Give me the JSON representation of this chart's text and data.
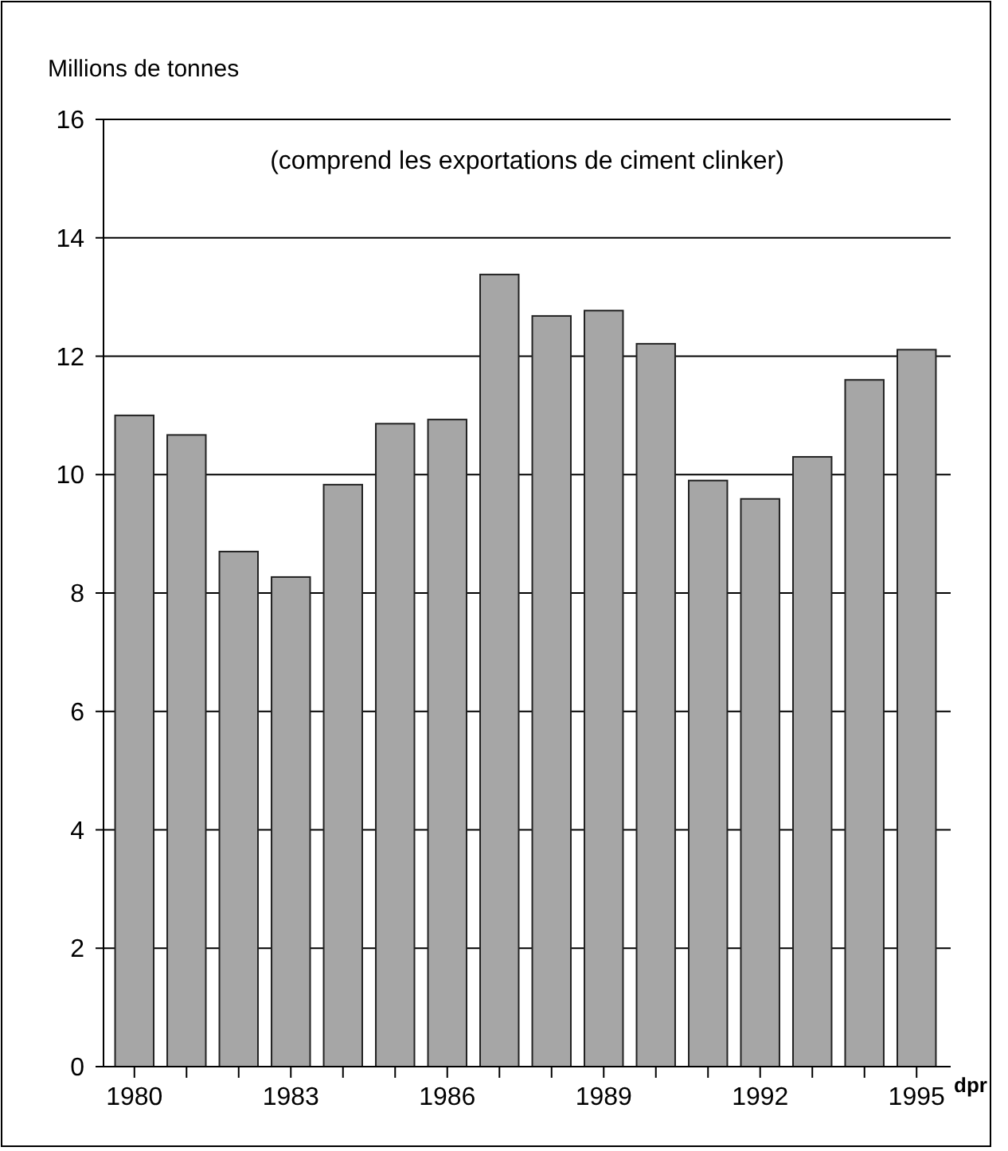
{
  "chart_data": {
    "type": "bar",
    "ylabel": "Millions de tonnes",
    "subtitle": "(comprend les exportations de ciment clinker)",
    "categories": [
      "1980",
      null,
      null,
      "1983",
      null,
      null,
      "1986",
      null,
      null,
      "1989",
      null,
      null,
      "1992",
      null,
      null,
      "1995"
    ],
    "values": [
      11.0,
      10.67,
      8.7,
      8.27,
      9.83,
      10.86,
      10.93,
      13.38,
      12.68,
      12.77,
      12.21,
      9.9,
      9.59,
      10.3,
      11.6,
      12.11
    ],
    "color": "#a6a6a6",
    "ylim": [
      0,
      16
    ],
    "yticks": [
      0,
      2,
      4,
      6,
      8,
      10,
      12,
      14,
      16
    ],
    "grid": "y",
    "annotations": [
      "dpr"
    ]
  }
}
